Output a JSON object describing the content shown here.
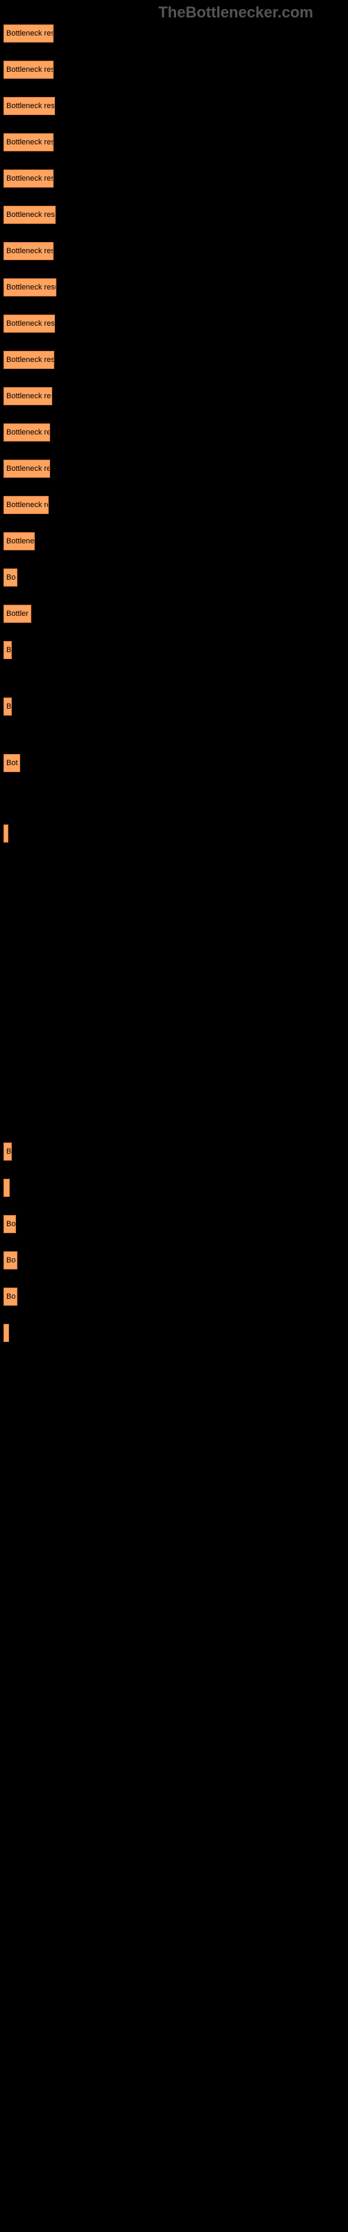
{
  "watermark": "TheBottlenecker.com",
  "bars": [
    {
      "width": 72,
      "label": "Bottleneck result",
      "spacer": 26
    },
    {
      "width": 72,
      "label": "Bottleneck result",
      "spacer": 26
    },
    {
      "width": 74,
      "label": "Bottleneck resu",
      "spacer": 26
    },
    {
      "width": 72,
      "label": "Bottleneck resu",
      "spacer": 26
    },
    {
      "width": 72,
      "label": "Bottleneck resu",
      "spacer": 26
    },
    {
      "width": 75,
      "label": "Bottleneck resu",
      "spacer": 26
    },
    {
      "width": 72,
      "label": "Bottleneck resu",
      "spacer": 26
    },
    {
      "width": 76,
      "label": "Bottleneck resu",
      "spacer": 26
    },
    {
      "width": 74,
      "label": "Bottleneck res",
      "spacer": 26
    },
    {
      "width": 73,
      "label": "Bottleneck res",
      "spacer": 26
    },
    {
      "width": 70,
      "label": "Bottleneck res",
      "spacer": 26
    },
    {
      "width": 67,
      "label": "Bottleneck re",
      "spacer": 26
    },
    {
      "width": 67,
      "label": "Bottleneck re",
      "spacer": 26
    },
    {
      "width": 65,
      "label": "Bottleneck re",
      "spacer": 26
    },
    {
      "width": 45,
      "label": "Bottlene",
      "spacer": 26
    },
    {
      "width": 20,
      "label": "Bo",
      "spacer": 26
    },
    {
      "width": 40,
      "label": "Bottler",
      "spacer": 26
    },
    {
      "width": 12,
      "label": "B",
      "spacer": 55
    },
    {
      "width": 12,
      "label": "B",
      "spacer": 55
    },
    {
      "width": 24,
      "label": "Bot",
      "spacer": 75
    },
    {
      "width": 7,
      "label": "",
      "spacer": 430
    },
    {
      "width": 12,
      "label": "B",
      "spacer": 26
    },
    {
      "width": 9,
      "label": "",
      "spacer": 26
    },
    {
      "width": 18,
      "label": "Bo",
      "spacer": 26
    },
    {
      "width": 20,
      "label": "Bo",
      "spacer": 26
    },
    {
      "width": 20,
      "label": "Bo",
      "spacer": 26
    },
    {
      "width": 8,
      "label": "",
      "spacer": 26
    }
  ],
  "bar_color": "#ffa35f",
  "bar_border_color": "#d87a3a",
  "background_color": "#000000",
  "watermark_color": "#555555"
}
